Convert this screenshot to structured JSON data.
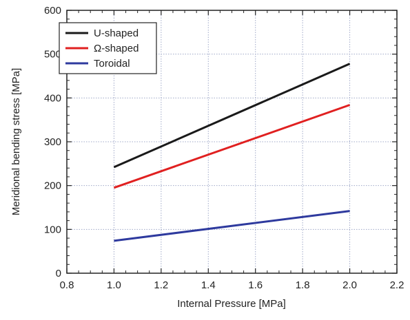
{
  "colors": {
    "background": "#ffffff",
    "axis": "#222222",
    "grid": "#9fa8c8",
    "u_shaped": "#1a1a1a",
    "omega_shaped": "#e02020",
    "toroidal": "#2e3a9e"
  },
  "chart_data": {
    "type": "line",
    "xlabel": "Internal Pressure [MPa]",
    "ylabel": "Meridional bending stress [MPa]",
    "xlim": [
      0.8,
      2.2
    ],
    "ylim": [
      0,
      600
    ],
    "xticks": [
      "0.8",
      "1.0",
      "1.2",
      "1.4",
      "1.6",
      "1.8",
      "2.0",
      "2.2"
    ],
    "yticks": [
      "0",
      "100",
      "200",
      "300",
      "400",
      "500",
      "600"
    ],
    "grid": true,
    "legend_position": "top-left",
    "series": [
      {
        "name": "U-shaped",
        "color": "#1a1a1a",
        "x": [
          1.0,
          2.0
        ],
        "y": [
          242,
          478
        ]
      },
      {
        "name": "Ω-shaped",
        "color": "#e02020",
        "x": [
          1.0,
          2.0
        ],
        "y": [
          195,
          384
        ]
      },
      {
        "name": "Toroidal",
        "color": "#2e3a9e",
        "x": [
          1.0,
          2.0
        ],
        "y": [
          74,
          142
        ]
      }
    ]
  }
}
